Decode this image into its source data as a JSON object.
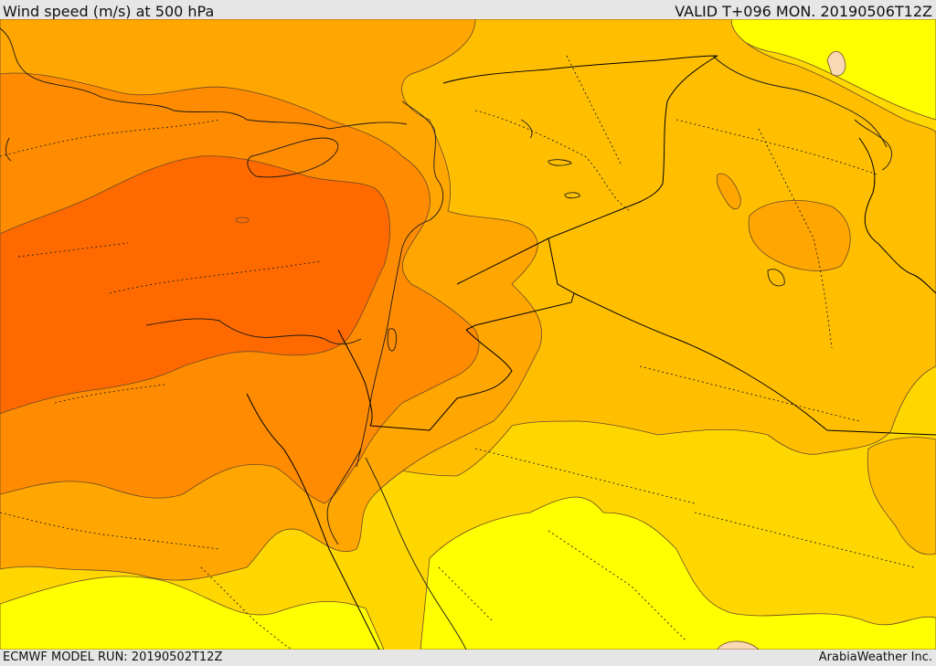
{
  "header": {
    "title": "Wind speed (m/s) at 500 hPa",
    "valid_label": "VALID T+096 MON. 20190506T12Z"
  },
  "footer": {
    "model_run": "ECMWF MODEL RUN: 20190502T12Z",
    "credit": "ArabiaWeather Inc."
  },
  "map": {
    "field": "wind speed",
    "level_hPa": 500,
    "colors": {
      "pale": "#f9d9b3",
      "yellow": "#ffff00",
      "gold": "#ffd700",
      "amber": "#ffbf00",
      "light_orange": "#ffa600",
      "orange": "#ff8c00",
      "dark_orange": "#ff6a00",
      "border": "#000000",
      "contour": "#6b4a2a"
    }
  }
}
